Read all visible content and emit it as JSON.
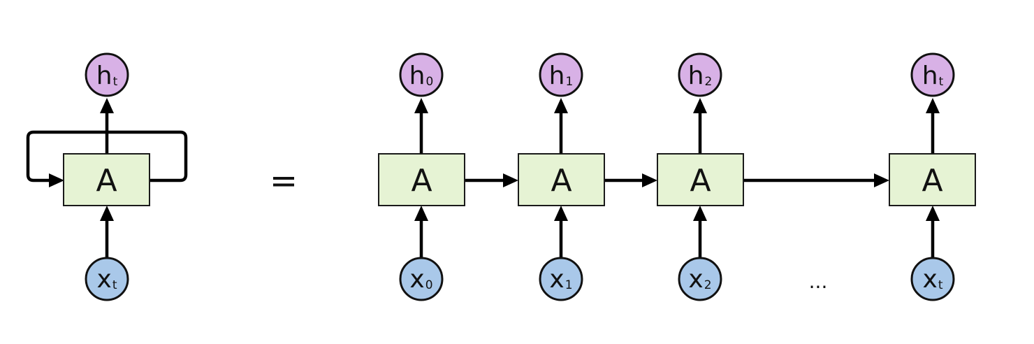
{
  "rolled": {
    "cell": {
      "label": "A"
    },
    "output": {
      "main": "h",
      "sub": "t"
    },
    "input": {
      "main": "x",
      "sub": "t"
    }
  },
  "equals": "=",
  "unrolled": [
    {
      "cell": "A",
      "output": {
        "main": "h",
        "sub": "0"
      },
      "input": {
        "main": "x",
        "sub": "0"
      }
    },
    {
      "cell": "A",
      "output": {
        "main": "h",
        "sub": "1"
      },
      "input": {
        "main": "x",
        "sub": "1"
      }
    },
    {
      "cell": "A",
      "output": {
        "main": "h",
        "sub": "2"
      },
      "input": {
        "main": "x",
        "sub": "2"
      }
    },
    {
      "cell": "A",
      "output": {
        "main": "h",
        "sub": "t"
      },
      "input": {
        "main": "x",
        "sub": "t"
      }
    }
  ],
  "ellipsis": "...",
  "colors": {
    "cell_fill": "#e6f3d4",
    "output_fill": "#d8b1e6",
    "input_fill": "#a9c8e9",
    "stroke": "#111111"
  }
}
